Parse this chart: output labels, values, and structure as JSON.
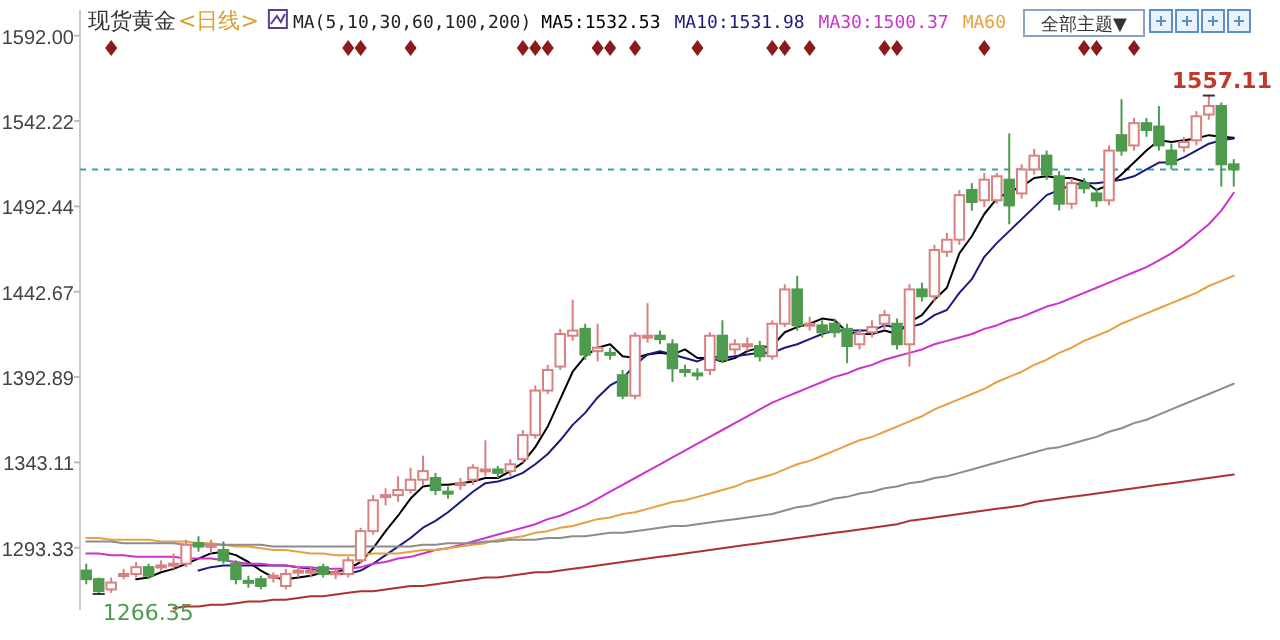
{
  "chart_data": {
    "type": "candlestick",
    "title": "现货黄金",
    "subtitle": "<日线>",
    "legend": "top",
    "tick_labels": "y",
    "annotations": [
      "MA(5,10,30,60,100,200)",
      "全部主题▼",
      "1266.35",
      {
        "text": "1557.11",
        "y": 1557.11
      }
    ],
    "categories": [
      null,
      null,
      null,
      null,
      null,
      null,
      null,
      null,
      null,
      null,
      null,
      null,
      null,
      null,
      null,
      null,
      null,
      null,
      null,
      null,
      null,
      null,
      null,
      null,
      null,
      null,
      null,
      null,
      null,
      null,
      null,
      null,
      null,
      null,
      null,
      null,
      null,
      null,
      null,
      null,
      null,
      null,
      null,
      null,
      null,
      null,
      null,
      null,
      null,
      null,
      null,
      null,
      null,
      null,
      null,
      null,
      null,
      null,
      null,
      null,
      null,
      null,
      null,
      null,
      null,
      null,
      null,
      null,
      null,
      null,
      null,
      null,
      null,
      null,
      null,
      null,
      null,
      null,
      null,
      null,
      null,
      null,
      null,
      null,
      null,
      null,
      null,
      null,
      null,
      null,
      null,
      null,
      null
    ],
    "ylim": [
      1257,
      1607
    ],
    "yticks": [
      {
        "value": 1592,
        "label": "1592.00"
      },
      {
        "value": 1542.22,
        "label": "1542.22"
      },
      {
        "value": 1492.44,
        "label": "1492.44"
      },
      {
        "value": 1442.67,
        "label": "1442.67"
      },
      {
        "value": 1392.89,
        "label": "1392.89"
      },
      {
        "value": 1343.11,
        "label": "1343.11"
      },
      {
        "value": 1293.33,
        "label": "1293.33"
      }
    ],
    "ref_lines": [
      {
        "axis": "y",
        "value": 1514,
        "color": "#3a9fb0",
        "line_style": "dashed"
      }
    ],
    "series": [
      {
        "ohlc": [
          [
            1280,
            1284,
            1272,
            1275
          ],
          [
            1275,
            1276,
            1266.35,
            1268
          ],
          [
            1269,
            1276,
            1267,
            1273
          ],
          [
            1277,
            1281,
            1275,
            1278
          ],
          [
            1278,
            1285,
            1276,
            1282
          ],
          [
            1282,
            1284,
            1275,
            1277
          ],
          [
            1282,
            1286,
            1280,
            1283
          ],
          [
            1283,
            1290,
            1281,
            1284
          ],
          [
            1284,
            1298,
            1282,
            1295
          ],
          [
            1296,
            1300,
            1291,
            1294
          ],
          [
            1294,
            1298,
            1290,
            1295
          ],
          [
            1292,
            1297,
            1284,
            1286
          ],
          [
            1284,
            1286,
            1272,
            1275
          ],
          [
            1274,
            1277,
            1270,
            1273
          ],
          [
            1275,
            1277,
            1269,
            1271
          ],
          [
            1276,
            1279,
            1273,
            1277
          ],
          [
            1271,
            1281,
            1269,
            1278
          ],
          [
            1279,
            1283,
            1276,
            1280
          ],
          [
            1279,
            1282,
            1276,
            1280
          ],
          [
            1282,
            1284,
            1276,
            1278
          ],
          [
            1278,
            1281,
            1275,
            1279
          ],
          [
            1278,
            1288,
            1276,
            1286
          ],
          [
            1286,
            1305,
            1284,
            1303
          ],
          [
            1303,
            1324,
            1301,
            1321
          ],
          [
            1323,
            1328,
            1318,
            1324
          ],
          [
            1324,
            1335,
            1320,
            1327
          ],
          [
            1327,
            1340,
            1325,
            1333
          ],
          [
            1333,
            1347,
            1330,
            1338
          ],
          [
            1334,
            1337,
            1324,
            1327
          ],
          [
            1326,
            1329,
            1322,
            1325
          ],
          [
            1330,
            1334,
            1327,
            1331
          ],
          [
            1333,
            1342,
            1330,
            1340
          ],
          [
            1338,
            1356,
            1335,
            1339
          ],
          [
            1339,
            1341,
            1334,
            1337
          ],
          [
            1338,
            1345,
            1335,
            1342
          ],
          [
            1345,
            1362,
            1343,
            1359
          ],
          [
            1359,
            1388,
            1357,
            1385
          ],
          [
            1385,
            1400,
            1383,
            1397
          ],
          [
            1399,
            1421,
            1397,
            1418
          ],
          [
            1417,
            1438,
            1414,
            1420
          ],
          [
            1421,
            1424,
            1403,
            1406
          ],
          [
            1408,
            1424,
            1402,
            1410
          ],
          [
            1407,
            1410,
            1403,
            1406
          ],
          [
            1394,
            1397,
            1380,
            1382
          ],
          [
            1382,
            1419,
            1380,
            1417
          ],
          [
            1416,
            1436,
            1413,
            1417
          ],
          [
            1417,
            1420,
            1412,
            1415
          ],
          [
            1412,
            1415,
            1390,
            1398
          ],
          [
            1397,
            1400,
            1393,
            1396
          ],
          [
            1395,
            1398,
            1391,
            1394
          ],
          [
            1397,
            1419,
            1394,
            1417
          ],
          [
            1417,
            1426,
            1401,
            1403
          ],
          [
            1409,
            1415,
            1406,
            1412
          ],
          [
            1411,
            1416,
            1408,
            1412
          ],
          [
            1411,
            1414,
            1402,
            1405
          ],
          [
            1405,
            1426,
            1403,
            1424
          ],
          [
            1424,
            1447,
            1422,
            1444
          ],
          [
            1444,
            1452,
            1420,
            1423
          ],
          [
            1423,
            1428,
            1420,
            1424
          ],
          [
            1423,
            1426,
            1416,
            1419
          ],
          [
            1424,
            1427,
            1416,
            1419
          ],
          [
            1421,
            1424,
            1401,
            1411
          ],
          [
            1412,
            1421,
            1409,
            1418
          ],
          [
            1419,
            1426,
            1416,
            1422
          ],
          [
            1424,
            1432,
            1421,
            1429
          ],
          [
            1424,
            1427,
            1409,
            1412
          ],
          [
            1412,
            1447,
            1399,
            1444
          ],
          [
            1444,
            1448,
            1437,
            1440
          ],
          [
            1440,
            1470,
            1437,
            1467
          ],
          [
            1466,
            1477,
            1463,
            1473
          ],
          [
            1473,
            1502,
            1470,
            1499
          ],
          [
            1502,
            1506,
            1490,
            1495
          ],
          [
            1496,
            1512,
            1492,
            1508
          ],
          [
            1496,
            1512,
            1494,
            1510
          ],
          [
            1508,
            1535,
            1482,
            1493
          ],
          [
            1500,
            1517,
            1497,
            1514
          ],
          [
            1514,
            1526,
            1511,
            1522
          ],
          [
            1522,
            1525,
            1508,
            1511
          ],
          [
            1510,
            1513,
            1490,
            1494
          ],
          [
            1494,
            1509,
            1491,
            1506
          ],
          [
            1506,
            1509,
            1500,
            1503
          ],
          [
            1500,
            1503,
            1492,
            1496
          ],
          [
            1496,
            1528,
            1493,
            1525
          ],
          [
            1534,
            1555,
            1522,
            1525
          ],
          [
            1528,
            1544,
            1525,
            1541
          ],
          [
            1541,
            1544,
            1533,
            1537
          ],
          [
            1539,
            1551,
            1525,
            1528
          ],
          [
            1525,
            1529,
            1514,
            1517
          ],
          [
            1527,
            1533,
            1524,
            1530
          ],
          [
            1531,
            1548,
            1528,
            1545
          ],
          [
            1546,
            1557.11,
            1543,
            1551
          ],
          [
            1551,
            1553,
            1504,
            1517
          ],
          [
            1517,
            1520,
            1504,
            1514
          ]
        ],
        "colors": [
          "#4e9a4e",
          "#4e9a4e",
          "#d98080",
          "#d98080",
          "#d98080",
          "#4e9a4e",
          "#d98080",
          "#d98080",
          "#d98080",
          "#4e9a4e",
          "#d98080",
          "#4e9a4e",
          "#4e9a4e",
          "#4e9a4e",
          "#4e9a4e",
          "#d98080",
          "#d98080",
          "#d98080",
          "#d98080",
          "#4e9a4e",
          "#d98080",
          "#d98080",
          "#d98080",
          "#d98080",
          "#d98080",
          "#d98080",
          "#d98080",
          "#d98080",
          "#4e9a4e",
          "#4e9a4e",
          "#d98080",
          "#d98080",
          "#d98080",
          "#4e9a4e",
          "#d98080",
          "#d98080",
          "#d98080",
          "#d98080",
          "#d98080",
          "#d98080",
          "#4e9a4e",
          "#d98080",
          "#4e9a4e",
          "#4e9a4e",
          "#d98080",
          "#d98080",
          "#4e9a4e",
          "#4e9a4e",
          "#4e9a4e",
          "#4e9a4e",
          "#d98080",
          "#4e9a4e",
          "#d98080",
          "#d98080",
          "#4e9a4e",
          "#d98080",
          "#d98080",
          "#4e9a4e",
          "#d98080",
          "#4e9a4e",
          "#4e9a4e",
          "#4e9a4e",
          "#d98080",
          "#d98080",
          "#d98080",
          "#4e9a4e",
          "#d98080",
          "#4e9a4e",
          "#d98080",
          "#d98080",
          "#d98080",
          "#4e9a4e",
          "#d98080",
          "#d98080",
          "#4e9a4e",
          "#d98080",
          "#d98080",
          "#4e9a4e",
          "#4e9a4e",
          "#d98080",
          "#4e9a4e",
          "#4e9a4e",
          "#d98080",
          "#4e9a4e",
          "#d98080",
          "#4e9a4e",
          "#4e9a4e",
          "#4e9a4e",
          "#d98080",
          "#d98080",
          "#d98080",
          "#4e9a4e",
          "#4e9a4e"
        ]
      },
      {
        "type": "line",
        "name": "MA5:1532.53",
        "color": "#000000",
        "values": [
          null,
          null,
          null,
          null,
          1275,
          1276,
          1279,
          1281,
          1284,
          1287,
          1290,
          1291,
          1289,
          1285,
          1280,
          1276,
          1275,
          1276,
          1277,
          1279,
          1279,
          1281,
          1285,
          1293,
          1303,
          1312,
          1322,
          1329,
          1330,
          1330,
          1331,
          1332,
          1334,
          1334,
          1338,
          1343,
          1352,
          1364,
          1380,
          1396,
          1405,
          1410,
          1412,
          1405,
          1404,
          1406,
          1407,
          1406,
          1409,
          1404,
          1404,
          1402,
          1404,
          1408,
          1410,
          1411,
          1419,
          1422,
          1424,
          1427,
          1426,
          1419,
          1418,
          1418,
          1420,
          1418,
          1425,
          1429,
          1438,
          1445,
          1465,
          1475,
          1488,
          1497,
          1501,
          1504,
          1509,
          1510,
          1509,
          1509,
          1507,
          1502,
          1505,
          1511,
          1518,
          1525,
          1531,
          1530,
          1531,
          1532,
          1534,
          1533,
          1532.53
        ]
      },
      {
        "type": "line",
        "name": "MA10:1531.98",
        "color": "#1a1a80",
        "values": [
          null,
          null,
          null,
          null,
          null,
          null,
          null,
          null,
          null,
          1280,
          1282,
          1283,
          1283,
          1283,
          1283,
          1283,
          1283,
          1282,
          1281,
          1279,
          1278,
          1278,
          1280,
          1284,
          1289,
          1294,
          1299,
          1305,
          1309,
          1314,
          1320,
          1326,
          1331,
          1332,
          1334,
          1337,
          1342,
          1348,
          1356,
          1365,
          1372,
          1381,
          1388,
          1392,
          1400,
          1406,
          1408,
          1406,
          1404,
          1402,
          1405,
          1404,
          1405,
          1406,
          1407,
          1407,
          1410,
          1412,
          1415,
          1418,
          1420,
          1420,
          1420,
          1420,
          1423,
          1422,
          1422,
          1424,
          1429,
          1432,
          1442,
          1450,
          1463,
          1471,
          1478,
          1485,
          1492,
          1499,
          1502,
          1505,
          1506,
          1506,
          1507,
          1508,
          1510,
          1514,
          1518,
          1518,
          1521,
          1525,
          1529,
          1531,
          1531.98
        ]
      },
      {
        "type": "line",
        "name": "MA30:1500.37",
        "color": "#cc33cc",
        "values": [
          1290,
          1290,
          1289,
          1289,
          1288,
          1288,
          1288,
          1288,
          1287,
          1287,
          1287,
          1286,
          1285,
          1284,
          1284,
          1283,
          1283,
          1282,
          1282,
          1281,
          1281,
          1281,
          1282,
          1284,
          1285,
          1287,
          1288,
          1290,
          1292,
          1293,
          1295,
          1297,
          1299,
          1301,
          1303,
          1305,
          1307,
          1310,
          1312,
          1315,
          1318,
          1322,
          1326,
          1330,
          1334,
          1338,
          1342,
          1346,
          1350,
          1354,
          1358,
          1362,
          1366,
          1370,
          1374,
          1378,
          1381,
          1384,
          1387,
          1390,
          1393,
          1395,
          1398,
          1400,
          1403,
          1405,
          1407,
          1409,
          1412,
          1414,
          1416,
          1418,
          1421,
          1423,
          1426,
          1428,
          1431,
          1434,
          1436,
          1439,
          1442,
          1445,
          1448,
          1451,
          1454,
          1457,
          1461,
          1465,
          1470,
          1476,
          1482,
          1490,
          1500.37
        ]
      },
      {
        "type": "line",
        "name": "MA60",
        "color": "#e8a040",
        "values": [
          1299,
          1299,
          1298,
          1298,
          1298,
          1298,
          1297,
          1297,
          1297,
          1296,
          1296,
          1295,
          1294,
          1294,
          1293,
          1292,
          1292,
          1291,
          1290,
          1290,
          1289,
          1289,
          1289,
          1290,
          1290,
          1290,
          1291,
          1292,
          1292,
          1293,
          1294,
          1295,
          1296,
          1298,
          1299,
          1300,
          1302,
          1303,
          1305,
          1306,
          1308,
          1310,
          1311,
          1313,
          1314,
          1316,
          1318,
          1320,
          1321,
          1323,
          1325,
          1327,
          1329,
          1332,
          1334,
          1336,
          1339,
          1342,
          1344,
          1347,
          1350,
          1353,
          1356,
          1358,
          1361,
          1364,
          1367,
          1370,
          1374,
          1377,
          1380,
          1383,
          1386,
          1390,
          1393,
          1396,
          1400,
          1403,
          1407,
          1410,
          1414,
          1417,
          1420,
          1424,
          1427,
          1430,
          1433,
          1436,
          1439,
          1442,
          1446,
          1449,
          1452
        ]
      },
      {
        "type": "line",
        "color": "#8c8c8c",
        "values": [
          1297,
          1297,
          1297,
          1296,
          1296,
          1296,
          1296,
          1296,
          1295,
          1295,
          1295,
          1295,
          1295,
          1295,
          1295,
          1294,
          1294,
          1294,
          1294,
          1294,
          1294,
          1294,
          1294,
          1294,
          1294,
          1294,
          1294,
          1295,
          1295,
          1296,
          1296,
          1296,
          1297,
          1297,
          1298,
          1298,
          1298,
          1299,
          1299,
          1300,
          1300,
          1301,
          1302,
          1302,
          1303,
          1304,
          1305,
          1306,
          1306,
          1307,
          1308,
          1309,
          1310,
          1311,
          1312,
          1313,
          1315,
          1317,
          1318,
          1320,
          1322,
          1323,
          1325,
          1326,
          1328,
          1329,
          1331,
          1332,
          1334,
          1335,
          1337,
          1339,
          1341,
          1343,
          1345,
          1347,
          1349,
          1351,
          1352,
          1354,
          1356,
          1358,
          1361,
          1363,
          1366,
          1368,
          1371,
          1374,
          1377,
          1380,
          1383,
          1386,
          1389
        ]
      },
      {
        "type": "line",
        "color": "#b03030",
        "values": [
          null,
          null,
          null,
          null,
          null,
          null,
          null,
          1258,
          1259,
          1259,
          1260,
          1260,
          1261,
          1262,
          1262,
          1263,
          1263,
          1264,
          1265,
          1265,
          1266,
          1267,
          1268,
          1268,
          1269,
          1270,
          1271,
          1271,
          1272,
          1273,
          1274,
          1275,
          1276,
          1276,
          1277,
          1278,
          1279,
          1279,
          1280,
          1281,
          1282,
          1283,
          1284,
          1285,
          1286,
          1287,
          1288,
          1289,
          1290,
          1291,
          1292,
          1293,
          1294,
          1295,
          1296,
          1297,
          1298,
          1299,
          1300,
          1301,
          1302,
          1303,
          1304,
          1305,
          1306,
          1307,
          1309,
          1310,
          1311,
          1312,
          1313,
          1314,
          1315,
          1316,
          1317,
          1318,
          1320,
          1321,
          1322,
          1323,
          1324,
          1325,
          1326,
          1327,
          1328,
          1329,
          1330,
          1331,
          1332,
          1333,
          1334,
          1335,
          1336
        ]
      }
    ]
  }
}
